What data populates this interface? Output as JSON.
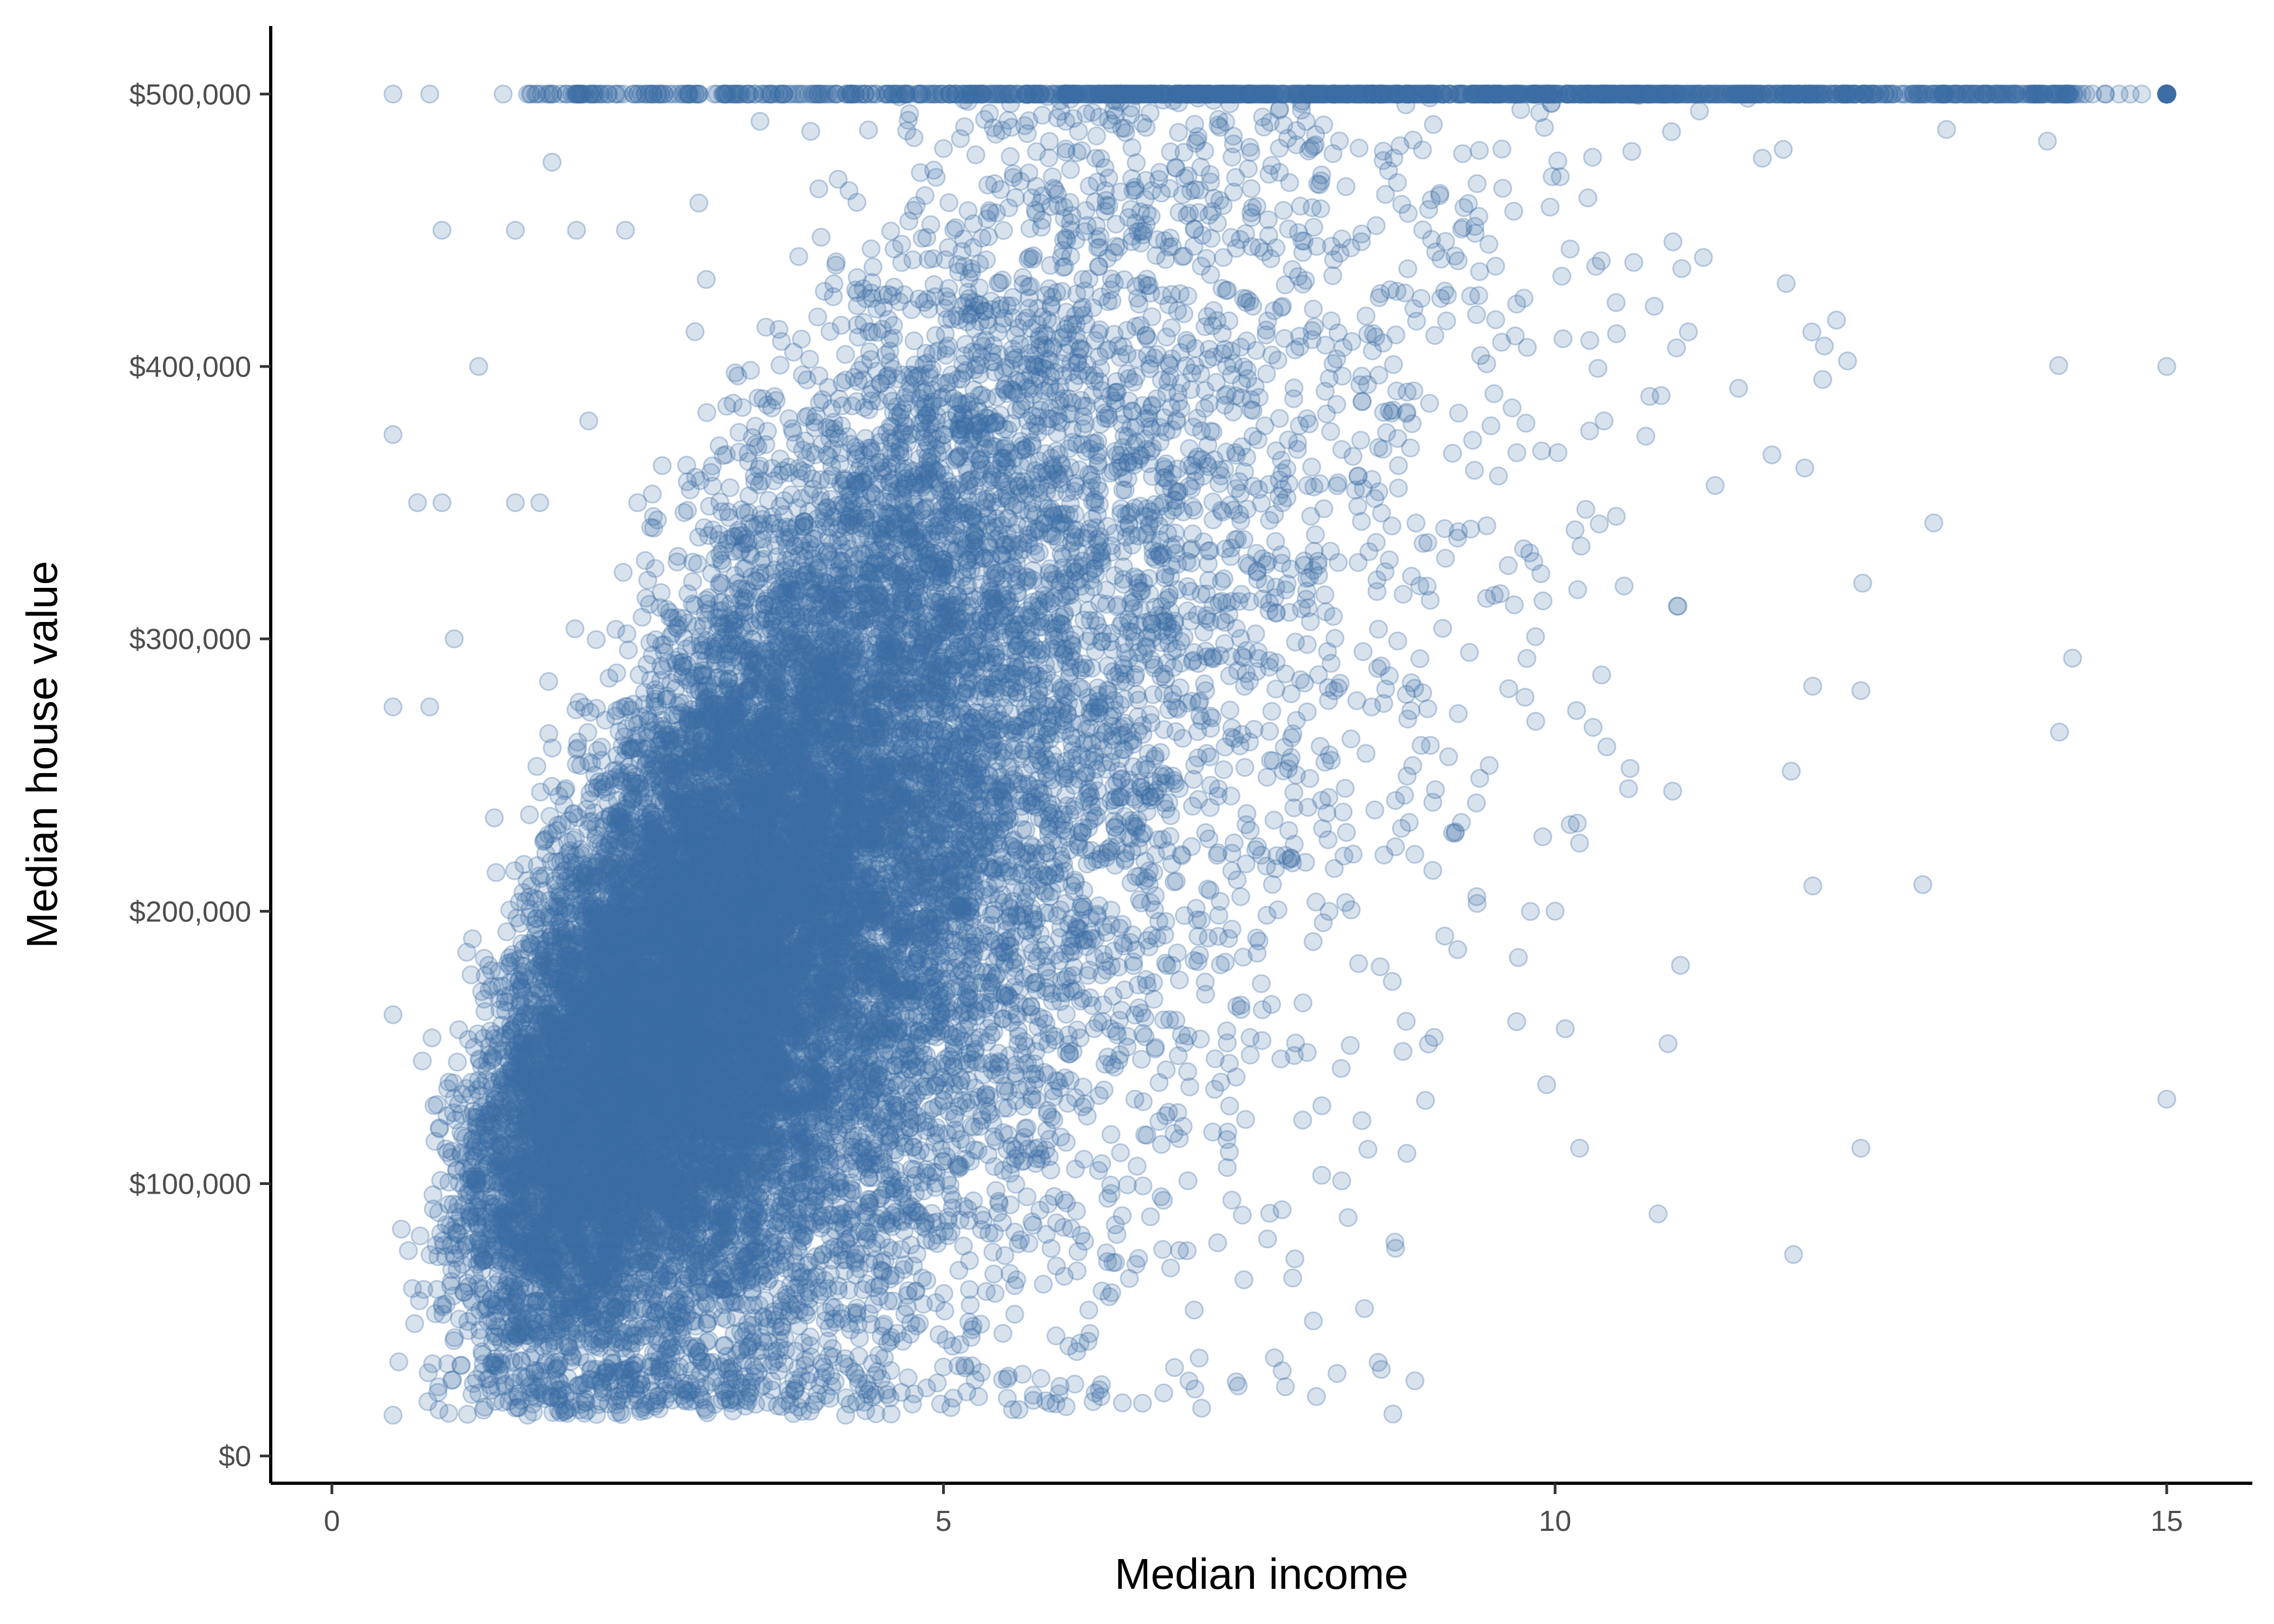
{
  "chart_data": {
    "type": "scatter",
    "xlabel": "Median income",
    "ylabel": "Median house value",
    "xlim": [
      -0.5,
      15.7
    ],
    "ylim": [
      -10000,
      525000
    ],
    "x_ticks": [
      {
        "value": 0,
        "label": "0"
      },
      {
        "value": 5,
        "label": "5"
      },
      {
        "value": 10,
        "label": "10"
      },
      {
        "value": 15,
        "label": "15"
      }
    ],
    "y_ticks": [
      {
        "value": 0,
        "label": "$0"
      },
      {
        "value": 100000,
        "label": "$100,000"
      },
      {
        "value": 200000,
        "label": "$200,000"
      },
      {
        "value": 300000,
        "label": "$300,000"
      },
      {
        "value": 400000,
        "label": "$400,000"
      },
      {
        "value": 500000,
        "label": "$500,000"
      }
    ],
    "grid": false,
    "legend": "none",
    "point_color": "#3A6EA5",
    "point_opacity": 0.2,
    "point_count_approx": 20000,
    "points": [
      [
        0.5,
        162000
      ],
      [
        0.5,
        15000
      ],
      [
        0.5,
        375000
      ],
      [
        0.5,
        275000
      ],
      [
        0.5,
        500000
      ],
      [
        0.7,
        350000
      ],
      [
        0.8,
        275000
      ],
      [
        0.9,
        450000
      ],
      [
        0.9,
        350000
      ],
      [
        1.0,
        300000
      ],
      [
        1.2,
        400000
      ],
      [
        1.4,
        500000
      ],
      [
        1.5,
        450000
      ],
      [
        1.5,
        350000
      ],
      [
        1.6,
        15000
      ],
      [
        1.7,
        350000
      ],
      [
        1.8,
        475000
      ],
      [
        2.0,
        450000
      ],
      [
        2.1,
        380000
      ],
      [
        2.4,
        450000
      ],
      [
        2.5,
        350000
      ],
      [
        3.0,
        460000
      ],
      [
        3.5,
        490000
      ],
      [
        4.2,
        15000
      ],
      [
        4.2,
        395000
      ],
      [
        5.0,
        480000
      ],
      [
        6.0,
        490000
      ],
      [
        6.1,
        75000
      ],
      [
        7.0,
        470000
      ],
      [
        8.0,
        480000
      ],
      [
        8.5,
        275000
      ],
      [
        9.0,
        240000
      ],
      [
        9.0,
        215000
      ],
      [
        9.3,
        295000
      ],
      [
        9.5,
        390000
      ],
      [
        9.7,
        183000
      ],
      [
        10.0,
        200000
      ],
      [
        10.2,
        225000
      ],
      [
        10.2,
        113000
      ],
      [
        10.4,
        380000
      ],
      [
        10.5,
        345000
      ],
      [
        10.6,
        245000
      ],
      [
        11.0,
        312000
      ],
      [
        11.5,
        392000
      ],
      [
        12.3,
        417000
      ],
      [
        12.5,
        281000
      ],
      [
        12.5,
        113000
      ],
      [
        13.2,
        487000
      ],
      [
        15.0,
        400000
      ],
      [
        15.0,
        131000
      ],
      [
        15.0,
        500000
      ],
      [
        14.5,
        500000
      ],
      [
        14.0,
        500000
      ],
      [
        13.5,
        500000
      ],
      [
        13.0,
        500000
      ],
      [
        12.0,
        500000
      ],
      [
        11.0,
        500000
      ],
      [
        10.0,
        500000
      ],
      [
        9.0,
        500000
      ],
      [
        8.0,
        500000
      ],
      [
        7.0,
        500000
      ],
      [
        6.0,
        500000
      ],
      [
        5.0,
        500000
      ],
      [
        4.0,
        500000
      ],
      [
        3.0,
        500000
      ],
      [
        2.5,
        500000
      ],
      [
        2.0,
        500000
      ],
      [
        1.6,
        500000
      ],
      [
        0.8,
        500000
      ]
    ]
  }
}
